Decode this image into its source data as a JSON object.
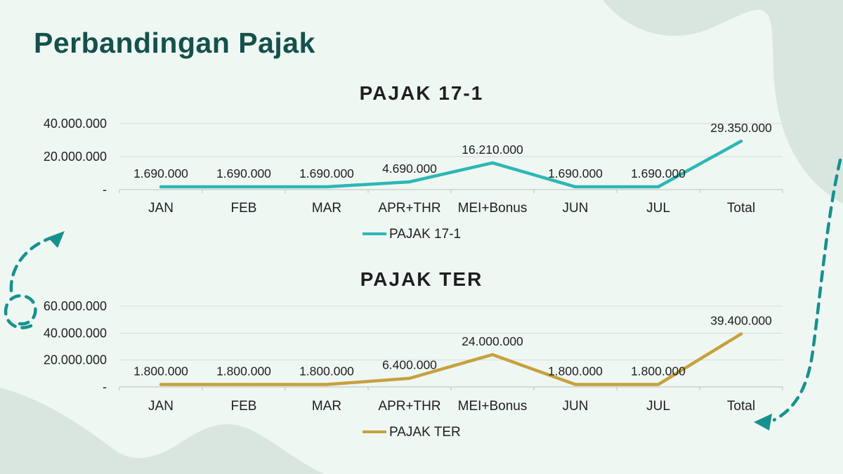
{
  "page_title": "Perbandingan Pajak",
  "colors": {
    "background": "#eff7f3",
    "accent_teal": "#17918e",
    "blob": "#d9e6df",
    "title_text": "#15514c",
    "grid": "#d9d9d9",
    "axis": "#bfbfbf",
    "text": "#1f1f1f",
    "series_teal": "#2cb7b5",
    "series_gold": "#c7a13e"
  },
  "chart_data": [
    {
      "type": "line",
      "title": "PAJAK 17-1",
      "categories": [
        "JAN",
        "FEB",
        "MAR",
        "APR+THR",
        "MEI+Bonus",
        "JUN",
        "JUL",
        "Total"
      ],
      "series": [
        {
          "name": "PAJAK 17-1",
          "color": "#2cb7b5",
          "values": [
            1690000,
            1690000,
            1690000,
            4690000,
            16210000,
            1690000,
            1690000,
            29350000
          ]
        }
      ],
      "data_labels": [
        "1.690.000",
        "1.690.000",
        "1.690.000",
        "4.690.000",
        "16.210.000",
        "1.690.000",
        "1.690.000",
        "29.350.000"
      ],
      "y_ticks": [
        {
          "value": 40000000,
          "label": "40.000.000"
        },
        {
          "value": 20000000,
          "label": "20.000.000"
        },
        {
          "value": 0,
          "label": "-"
        }
      ],
      "ylim": [
        0,
        40000000
      ],
      "xlabel": "",
      "ylabel": "",
      "grid": true,
      "legend": {
        "label": "PAJAK 17-1",
        "position": "bottom"
      }
    },
    {
      "type": "line",
      "title": "PAJAK TER",
      "categories": [
        "JAN",
        "FEB",
        "MAR",
        "APR+THR",
        "MEI+Bonus",
        "JUN",
        "JUL",
        "Total"
      ],
      "series": [
        {
          "name": "PAJAK TER",
          "color": "#c7a13e",
          "values": [
            1800000,
            1800000,
            1800000,
            6400000,
            24000000,
            1800000,
            1800000,
            39400000
          ]
        }
      ],
      "data_labels": [
        "1.800.000",
        "1.800.000",
        "1.800.000",
        "6.400.000",
        "24.000.000",
        "1.800.000",
        "1.800.000",
        "39.400.000"
      ],
      "y_ticks": [
        {
          "value": 60000000,
          "label": "60.000.000"
        },
        {
          "value": 40000000,
          "label": "40.000.000"
        },
        {
          "value": 20000000,
          "label": "20.000.000"
        },
        {
          "value": 0,
          "label": "-"
        }
      ],
      "ylim": [
        0,
        60000000
      ],
      "xlabel": "",
      "ylabel": "",
      "grid": true,
      "legend": {
        "label": "PAJAK TER",
        "position": "bottom"
      }
    }
  ]
}
